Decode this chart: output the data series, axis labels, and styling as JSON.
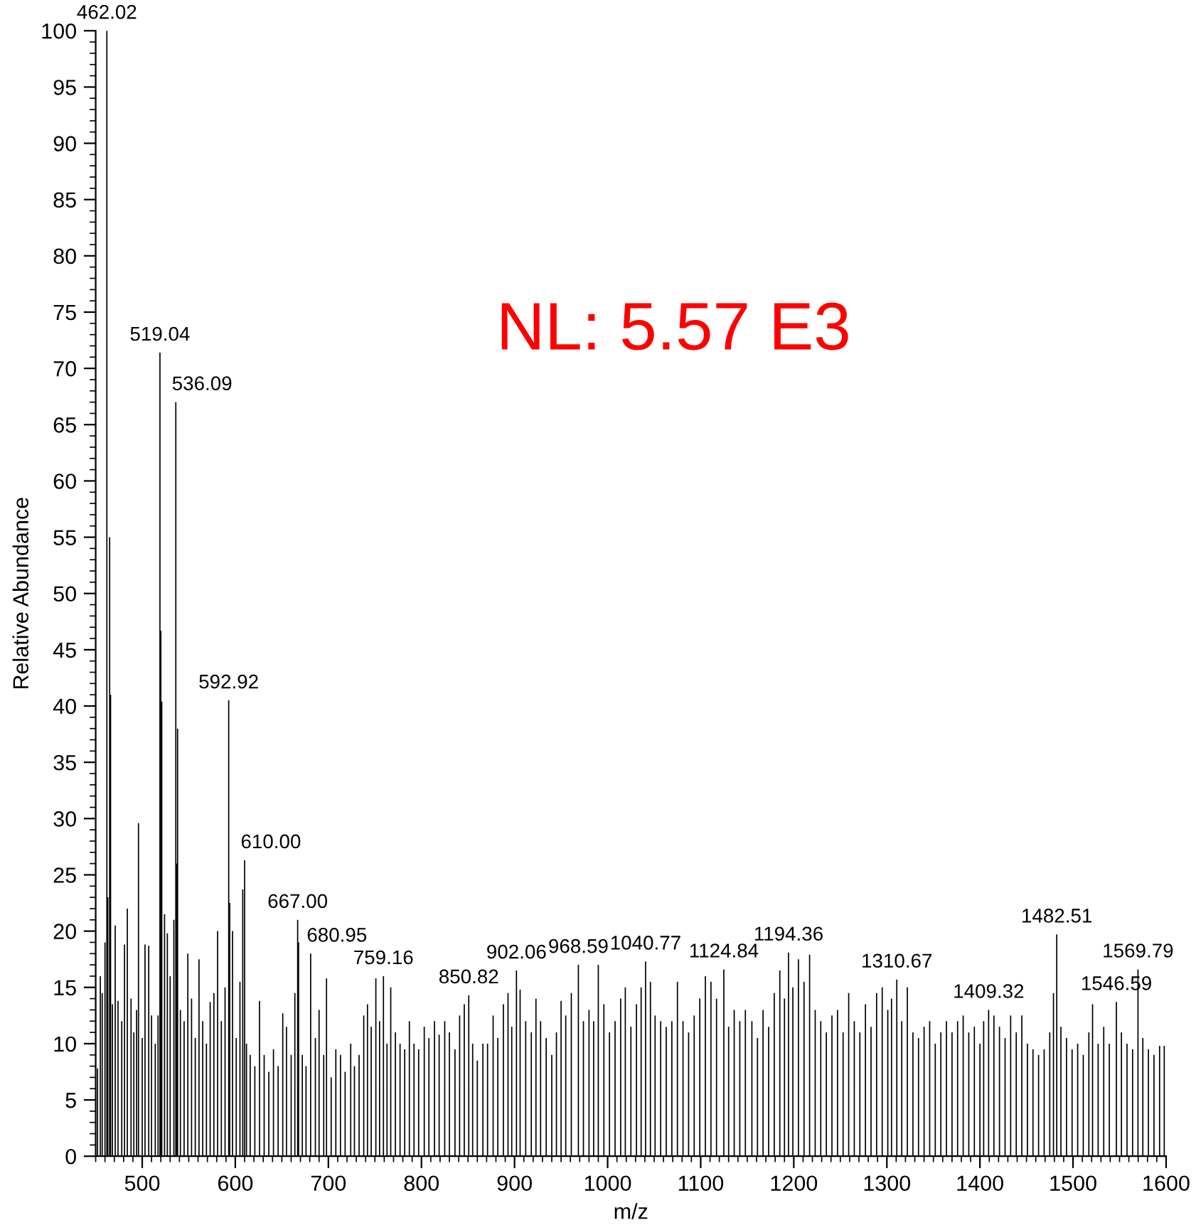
{
  "chart_data": {
    "type": "bar",
    "xlabel": "m/z",
    "ylabel": "Relative Abundance",
    "xlim": [
      450,
      1600
    ],
    "xticks": [
      500,
      600,
      700,
      800,
      900,
      1000,
      1100,
      1200,
      1300,
      1400,
      1500,
      1600
    ],
    "ylim": [
      0,
      100
    ],
    "yticks": [
      0,
      5,
      10,
      15,
      20,
      25,
      30,
      35,
      40,
      45,
      50,
      55,
      60,
      65,
      70,
      75,
      80,
      85,
      90,
      95,
      100
    ],
    "grid": false,
    "legend": false,
    "series": [
      {
        "color": "#000000",
        "x": [
          452,
          455,
          457,
          460,
          462.02,
          463,
          465,
          466,
          468,
          471,
          474,
          478,
          481,
          484,
          488,
          491,
          494,
          496,
          500,
          503,
          507,
          510,
          514,
          517,
          519.04,
          520,
          521,
          524,
          527,
          530,
          534,
          536.09,
          537,
          538,
          541,
          545,
          549,
          553,
          557,
          561,
          565,
          569,
          573,
          577,
          581,
          585,
          589,
          592.92,
          594,
          597,
          601,
          605,
          608,
          610.0,
          612,
          616,
          621,
          626,
          631,
          636,
          641,
          646,
          651,
          655,
          660,
          664,
          667.0,
          668,
          672,
          676,
          680.95,
          686,
          690,
          695,
          698,
          703,
          708,
          713,
          718,
          724,
          728,
          733,
          738,
          742,
          746,
          751,
          755,
          759.16,
          763,
          767,
          772,
          777,
          782,
          787,
          792,
          797,
          803,
          808,
          814,
          819,
          825,
          830,
          836,
          841,
          846,
          850.82,
          855,
          860,
          866,
          871,
          877,
          882,
          888,
          893,
          897,
          902.06,
          906,
          912,
          918,
          923,
          928,
          934,
          940,
          945,
          950,
          955,
          961,
          968.59,
          974,
          980,
          985,
          990,
          996,
          1002,
          1008,
          1014,
          1019,
          1025,
          1031,
          1036,
          1040.77,
          1046,
          1051,
          1057,
          1063,
          1069,
          1075,
          1081,
          1087,
          1093,
          1099,
          1105,
          1111,
          1117,
          1124.84,
          1130,
          1136,
          1142,
          1148,
          1155,
          1161,
          1167,
          1173,
          1179,
          1185,
          1190,
          1194.36,
          1199,
          1205,
          1211,
          1217,
          1223,
          1229,
          1235,
          1241,
          1247,
          1253,
          1259,
          1265,
          1271,
          1277,
          1283,
          1289,
          1295,
          1301,
          1305,
          1310.67,
          1316,
          1322,
          1328,
          1334,
          1340,
          1346,
          1352,
          1358,
          1364,
          1370,
          1376,
          1382,
          1388,
          1394,
          1400,
          1404,
          1409.32,
          1415,
          1421,
          1427,
          1433,
          1439,
          1445,
          1451,
          1457,
          1463,
          1469,
          1475,
          1479,
          1482.51,
          1487,
          1493,
          1499,
          1505,
          1511,
          1517,
          1521,
          1527,
          1533,
          1539,
          1546.59,
          1552,
          1558,
          1564,
          1569.79,
          1575,
          1581,
          1587,
          1593,
          1598
        ],
        "values": [
          7.8,
          16,
          14.5,
          19,
          100,
          23,
          55,
          41,
          13.5,
          20.5,
          13.8,
          12,
          18.8,
          22,
          14,
          11,
          13,
          29.6,
          10.5,
          18.8,
          18.7,
          12.5,
          10,
          12.5,
          71.4,
          46.7,
          40.4,
          21.5,
          19.8,
          16,
          21,
          67,
          26,
          38,
          13,
          12,
          18,
          14,
          10.5,
          17.5,
          12,
          10,
          13.7,
          14.5,
          20,
          12,
          15,
          40.5,
          22.5,
          20,
          10.5,
          15.5,
          23.7,
          26.3,
          10,
          9,
          8,
          13.8,
          9,
          7.5,
          9.5,
          8,
          12.7,
          11.5,
          9,
          14.5,
          21,
          19,
          9,
          8,
          18,
          10.5,
          13,
          9,
          15.8,
          7,
          9.5,
          9,
          7.5,
          10,
          8,
          9,
          12.5,
          13.5,
          11.5,
          15.8,
          12,
          16,
          10,
          15,
          11,
          10,
          9.5,
          12,
          10,
          9.5,
          11.5,
          10.5,
          12,
          10.8,
          12,
          11,
          9.5,
          12.5,
          13.5,
          14.3,
          10,
          8.5,
          10,
          10,
          12.5,
          10.5,
          13.5,
          14.5,
          11.5,
          16.5,
          14.8,
          12,
          11,
          14,
          12,
          10.5,
          9,
          11,
          13.8,
          12.5,
          14.5,
          17,
          12,
          13,
          12,
          17,
          13.5,
          11,
          12,
          14,
          15,
          11.5,
          13.5,
          15,
          17.3,
          15.5,
          12.5,
          12,
          11.5,
          12,
          15.5,
          12,
          11,
          12.5,
          14,
          16,
          15.5,
          14,
          16.6,
          11.5,
          13,
          12,
          13,
          12,
          10.5,
          13,
          11.5,
          14.5,
          16.5,
          14,
          18.1,
          15,
          17.5,
          15.5,
          17.9,
          13,
          12,
          11,
          12.5,
          13,
          11,
          14.5,
          12,
          11,
          13.5,
          11.5,
          14.5,
          15,
          13,
          14,
          15.7,
          12,
          15,
          11,
          10.5,
          11.5,
          12,
          10,
          11,
          12,
          11,
          12,
          12.5,
          11,
          11.5,
          10,
          12,
          13,
          12.5,
          11.5,
          10.5,
          12.5,
          11,
          12.5,
          10,
          9.5,
          9,
          9.5,
          11,
          14.5,
          19.7,
          11.5,
          10.5,
          9.5,
          10,
          9,
          11,
          13.5,
          10,
          11.5,
          10,
          13.7,
          11,
          10,
          9.5,
          16.6,
          10.5,
          9.5,
          9,
          9.8,
          9.8
        ]
      }
    ],
    "annotations": [
      {
        "text": "462.02",
        "x": 462.02,
        "y": 100
      },
      {
        "text": "519.04",
        "x": 519.04,
        "y": 71.4
      },
      {
        "text": "536.09",
        "x": 536.09,
        "y": 67
      },
      {
        "text": "592.92",
        "x": 592.92,
        "y": 40.5
      },
      {
        "text": "610.00",
        "x": 610.0,
        "y": 26.3
      },
      {
        "text": "667.00",
        "x": 667.0,
        "y": 21
      },
      {
        "text": "680.95",
        "x": 680.95,
        "y": 18
      },
      {
        "text": "759.16",
        "x": 759.16,
        "y": 16
      },
      {
        "text": "850.82",
        "x": 850.82,
        "y": 14.3
      },
      {
        "text": "902.06",
        "x": 902.06,
        "y": 16.5
      },
      {
        "text": "968.59",
        "x": 968.59,
        "y": 17
      },
      {
        "text": "1040.77",
        "x": 1040.77,
        "y": 17.3
      },
      {
        "text": "1124.84",
        "x": 1124.84,
        "y": 16.6
      },
      {
        "text": "1194.36",
        "x": 1194.36,
        "y": 18.1
      },
      {
        "text": "1310.67",
        "x": 1310.67,
        "y": 15.7
      },
      {
        "text": "1409.32",
        "x": 1409.32,
        "y": 13
      },
      {
        "text": "1482.51",
        "x": 1482.51,
        "y": 19.7
      },
      {
        "text": "1546.59",
        "x": 1546.59,
        "y": 13.7
      },
      {
        "text": "1569.79",
        "x": 1569.79,
        "y": 16.6
      },
      "NL: 5.57 E3"
    ]
  }
}
